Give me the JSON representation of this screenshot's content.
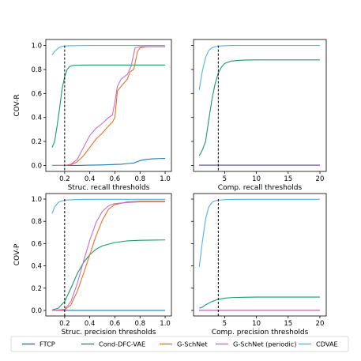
{
  "chart_data": {
    "type": "line",
    "legend": {
      "placement": "bottom",
      "entries": [
        {
          "name": "FTCP",
          "color": "#1f77b4"
        },
        {
          "name": "Cond-DFC-VAE",
          "color": "#159a70"
        },
        {
          "name": "G-SchNet",
          "color": "#e8702a"
        },
        {
          "name": "G-SchNet (periodic)",
          "color": "#c86fc4"
        },
        {
          "name": "CDVAE",
          "color": "#4fb3e8"
        }
      ]
    },
    "panels": [
      {
        "id": "struc-recall",
        "xlabel": "Struc. recall thresholds",
        "ylabel": "COV-R",
        "xlim": [
          0.05,
          1.05
        ],
        "ylim": [
          -0.05,
          1.05
        ],
        "xticks": [
          "0.2",
          "0.4",
          "0.6",
          "0.8",
          "1.0"
        ],
        "xtick_values": [
          0.2,
          0.4,
          0.6,
          0.8,
          1.0
        ],
        "yticks": [
          "0.0",
          "0.2",
          "0.4",
          "0.6",
          "0.8",
          "1.0"
        ],
        "ytick_values": [
          0.0,
          0.2,
          0.4,
          0.6,
          0.8,
          1.0
        ],
        "vline": 0.2,
        "series": [
          {
            "name": "FTCP",
            "x": [
              0.1,
              0.2,
              0.3,
              0.4,
              0.5,
              0.6,
              0.65,
              0.7,
              0.75,
              0.8,
              0.85,
              0.9,
              0.95,
              1.0
            ],
            "y": [
              0,
              0,
              0,
              0.002,
              0.004,
              0.008,
              0.01,
              0.015,
              0.02,
              0.04,
              0.05,
              0.055,
              0.057,
              0.058
            ]
          },
          {
            "name": "Cond-DFC-VAE",
            "x": [
              0.1,
              0.12,
              0.14,
              0.16,
              0.18,
              0.2,
              0.22,
              0.24,
              0.26,
              0.28,
              0.3,
              0.35,
              0.4,
              0.5,
              0.6,
              0.7,
              0.8,
              0.9,
              1.0
            ],
            "y": [
              0.15,
              0.2,
              0.33,
              0.48,
              0.64,
              0.74,
              0.8,
              0.825,
              0.832,
              0.835,
              0.836,
              0.837,
              0.837,
              0.837,
              0.837,
              0.837,
              0.837,
              0.837,
              0.837
            ]
          },
          {
            "name": "G-SchNet",
            "x": [
              0.1,
              0.2,
              0.25,
              0.3,
              0.35,
              0.4,
              0.45,
              0.5,
              0.55,
              0.58,
              0.6,
              0.62,
              0.65,
              0.7,
              0.72,
              0.75,
              0.78,
              0.8,
              0.85,
              0.9,
              1.0
            ],
            "y": [
              0,
              0,
              0.005,
              0.03,
              0.08,
              0.15,
              0.22,
              0.27,
              0.33,
              0.36,
              0.4,
              0.62,
              0.66,
              0.72,
              0.78,
              0.8,
              0.95,
              0.98,
              0.99,
              0.99,
              0.99
            ]
          },
          {
            "name": "G-SchNet (periodic)",
            "x": [
              0.1,
              0.2,
              0.25,
              0.3,
              0.35,
              0.4,
              0.45,
              0.5,
              0.55,
              0.58,
              0.6,
              0.62,
              0.65,
              0.7,
              0.73,
              0.76,
              0.8,
              0.85,
              0.9,
              1.0
            ],
            "y": [
              0,
              0,
              0.01,
              0.05,
              0.15,
              0.25,
              0.31,
              0.35,
              0.4,
              0.42,
              0.53,
              0.66,
              0.72,
              0.76,
              0.83,
              0.98,
              0.99,
              0.99,
              0.99,
              0.99
            ]
          },
          {
            "name": "CDVAE",
            "x": [
              0.1,
              0.12,
              0.14,
              0.16,
              0.18,
              0.2,
              0.25,
              0.3,
              0.4,
              0.6,
              0.8,
              1.0
            ],
            "y": [
              0.92,
              0.95,
              0.97,
              0.985,
              0.993,
              0.996,
              0.998,
              0.999,
              1.0,
              1.0,
              1.0,
              1.0
            ]
          }
        ]
      },
      {
        "id": "comp-recall",
        "xlabel": "Comp. recall thresholds",
        "ylabel": "",
        "xlim": [
          0.1,
          21.0
        ],
        "ylim": [
          -0.05,
          1.05
        ],
        "xticks": [
          "5",
          "10",
          "15",
          "20"
        ],
        "xtick_values": [
          5,
          10,
          15,
          20
        ],
        "yticks": [],
        "ytick_values": [
          0.0,
          0.2,
          0.4,
          0.6,
          0.8,
          1.0
        ],
        "vline": 4,
        "series": [
          {
            "name": "FTCP",
            "x": [
              1,
              20
            ],
            "y": [
              0.003,
              0.003
            ]
          },
          {
            "name": "Cond-DFC-VAE",
            "x": [
              1,
              1.5,
              2,
              2.5,
              3,
              3.5,
              4,
              4.5,
              5,
              6,
              7,
              8,
              10,
              12,
              15,
              20
            ],
            "y": [
              0.08,
              0.13,
              0.2,
              0.38,
              0.55,
              0.68,
              0.77,
              0.82,
              0.85,
              0.87,
              0.875,
              0.878,
              0.88,
              0.88,
              0.88,
              0.88
            ]
          },
          {
            "name": "G-SchNet",
            "x": [
              1,
              20
            ],
            "y": [
              0.0,
              0.0
            ]
          },
          {
            "name": "G-SchNet (periodic)",
            "x": [
              1,
              20
            ],
            "y": [
              0.001,
              0.001
            ]
          },
          {
            "name": "CDVAE",
            "x": [
              1,
              1.5,
              2,
              2.5,
              3,
              3.5,
              4,
              5,
              6,
              8,
              10,
              15,
              20
            ],
            "y": [
              0.63,
              0.79,
              0.9,
              0.96,
              0.98,
              0.99,
              0.995,
              0.998,
              1.0,
              1.0,
              1.0,
              1.0,
              1.0
            ]
          }
        ]
      },
      {
        "id": "struc-precision",
        "xlabel": "Struc. precision thresholds",
        "ylabel": "COV-P",
        "xlim": [
          0.05,
          1.05
        ],
        "ylim": [
          -0.05,
          1.05
        ],
        "xticks": [
          "0.2",
          "0.4",
          "0.6",
          "0.8",
          "1.0"
        ],
        "xtick_values": [
          0.2,
          0.4,
          0.6,
          0.8,
          1.0
        ],
        "yticks": [
          "0.0",
          "0.2",
          "0.4",
          "0.6",
          "0.8",
          "1.0"
        ],
        "ytick_values": [
          0.0,
          0.2,
          0.4,
          0.6,
          0.8,
          1.0
        ],
        "vline": 0.2,
        "series": [
          {
            "name": "FTCP",
            "x": [
              0.1,
              1.0
            ],
            "y": [
              0.0,
              0.0
            ]
          },
          {
            "name": "Cond-DFC-VAE",
            "x": [
              0.1,
              0.15,
              0.2,
              0.25,
              0.3,
              0.35,
              0.4,
              0.45,
              0.5,
              0.6,
              0.7,
              0.8,
              0.9,
              1.0
            ],
            "y": [
              0.005,
              0.02,
              0.08,
              0.2,
              0.33,
              0.43,
              0.5,
              0.55,
              0.58,
              0.61,
              0.625,
              0.63,
              0.632,
              0.633
            ]
          },
          {
            "name": "G-SchNet",
            "x": [
              0.1,
              0.2,
              0.25,
              0.3,
              0.35,
              0.4,
              0.45,
              0.5,
              0.55,
              0.6,
              0.7,
              0.8,
              0.9,
              1.0
            ],
            "y": [
              0,
              0.005,
              0.05,
              0.17,
              0.33,
              0.5,
              0.67,
              0.81,
              0.91,
              0.95,
              0.975,
              0.98,
              0.98,
              0.98
            ]
          },
          {
            "name": "G-SchNet (periodic)",
            "x": [
              0.1,
              0.2,
              0.25,
              0.3,
              0.35,
              0.4,
              0.45,
              0.5,
              0.55,
              0.6,
              0.7,
              0.8,
              0.9,
              1.0
            ],
            "y": [
              0,
              0.01,
              0.08,
              0.24,
              0.44,
              0.63,
              0.79,
              0.89,
              0.94,
              0.96,
              0.97,
              0.975,
              0.975,
              0.975
            ]
          },
          {
            "name": "CDVAE",
            "x": [
              0.1,
              0.12,
              0.15,
              0.18,
              0.2,
              0.25,
              0.3,
              0.4,
              0.6,
              0.8,
              1.0
            ],
            "y": [
              0.87,
              0.93,
              0.97,
              0.985,
              0.99,
              0.994,
              0.996,
              0.998,
              0.998,
              0.998,
              0.998
            ]
          }
        ]
      },
      {
        "id": "comp-precision",
        "xlabel": "Comp. precision thresholds",
        "ylabel": "",
        "xlim": [
          0.1,
          21.0
        ],
        "ylim": [
          -0.05,
          1.05
        ],
        "xticks": [
          "5",
          "10",
          "15",
          "20"
        ],
        "xtick_values": [
          5,
          10,
          15,
          20
        ],
        "yticks": [],
        "ytick_values": [
          0.0,
          0.2,
          0.4,
          0.6,
          0.8,
          1.0
        ],
        "vline": 4,
        "series": [
          {
            "name": "FTCP",
            "x": [
              1,
              20
            ],
            "y": [
              0.0,
              0.0
            ]
          },
          {
            "name": "Cond-DFC-VAE",
            "x": [
              1,
              1.5,
              2,
              2.5,
              3,
              3.5,
              4,
              5,
              6,
              8,
              10,
              15,
              20
            ],
            "y": [
              0.02,
              0.03,
              0.05,
              0.065,
              0.08,
              0.09,
              0.1,
              0.11,
              0.115,
              0.118,
              0.12,
              0.12,
              0.12
            ]
          },
          {
            "name": "G-SchNet",
            "x": [
              1,
              20
            ],
            "y": [
              0.0,
              0.0
            ]
          },
          {
            "name": "G-SchNet (periodic)",
            "x": [
              1,
              20
            ],
            "y": [
              0.001,
              0.001
            ]
          },
          {
            "name": "CDVAE",
            "x": [
              1,
              1.5,
              2,
              2.5,
              3,
              3.5,
              4,
              5,
              6,
              8,
              10,
              15,
              20
            ],
            "y": [
              0.39,
              0.62,
              0.82,
              0.93,
              0.97,
              0.985,
              0.99,
              0.995,
              0.997,
              0.998,
              0.998,
              0.998,
              0.998
            ]
          }
        ]
      }
    ]
  }
}
